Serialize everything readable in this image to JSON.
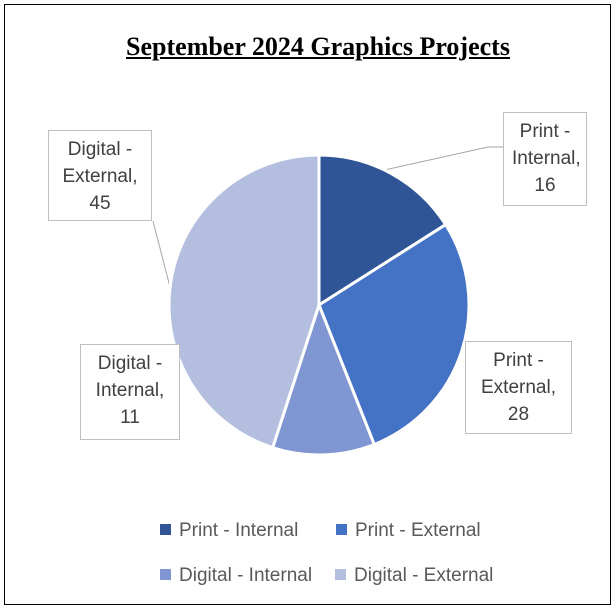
{
  "chart_data": {
    "type": "pie",
    "title": "September 2024 Graphics Projects",
    "categories": [
      "Print - Internal",
      "Print - External",
      "Digital - Internal",
      "Digital - External"
    ],
    "values": [
      16,
      28,
      11,
      45
    ],
    "value_labels": [
      "Print - Internal, 16",
      "Print - External, 28",
      "Digital - Internal, 11",
      "Digital - External, 45"
    ],
    "colors": [
      "#2f5597",
      "#4472c4",
      "#8096d3",
      "#b4bfe0"
    ],
    "legend": "bottom"
  }
}
